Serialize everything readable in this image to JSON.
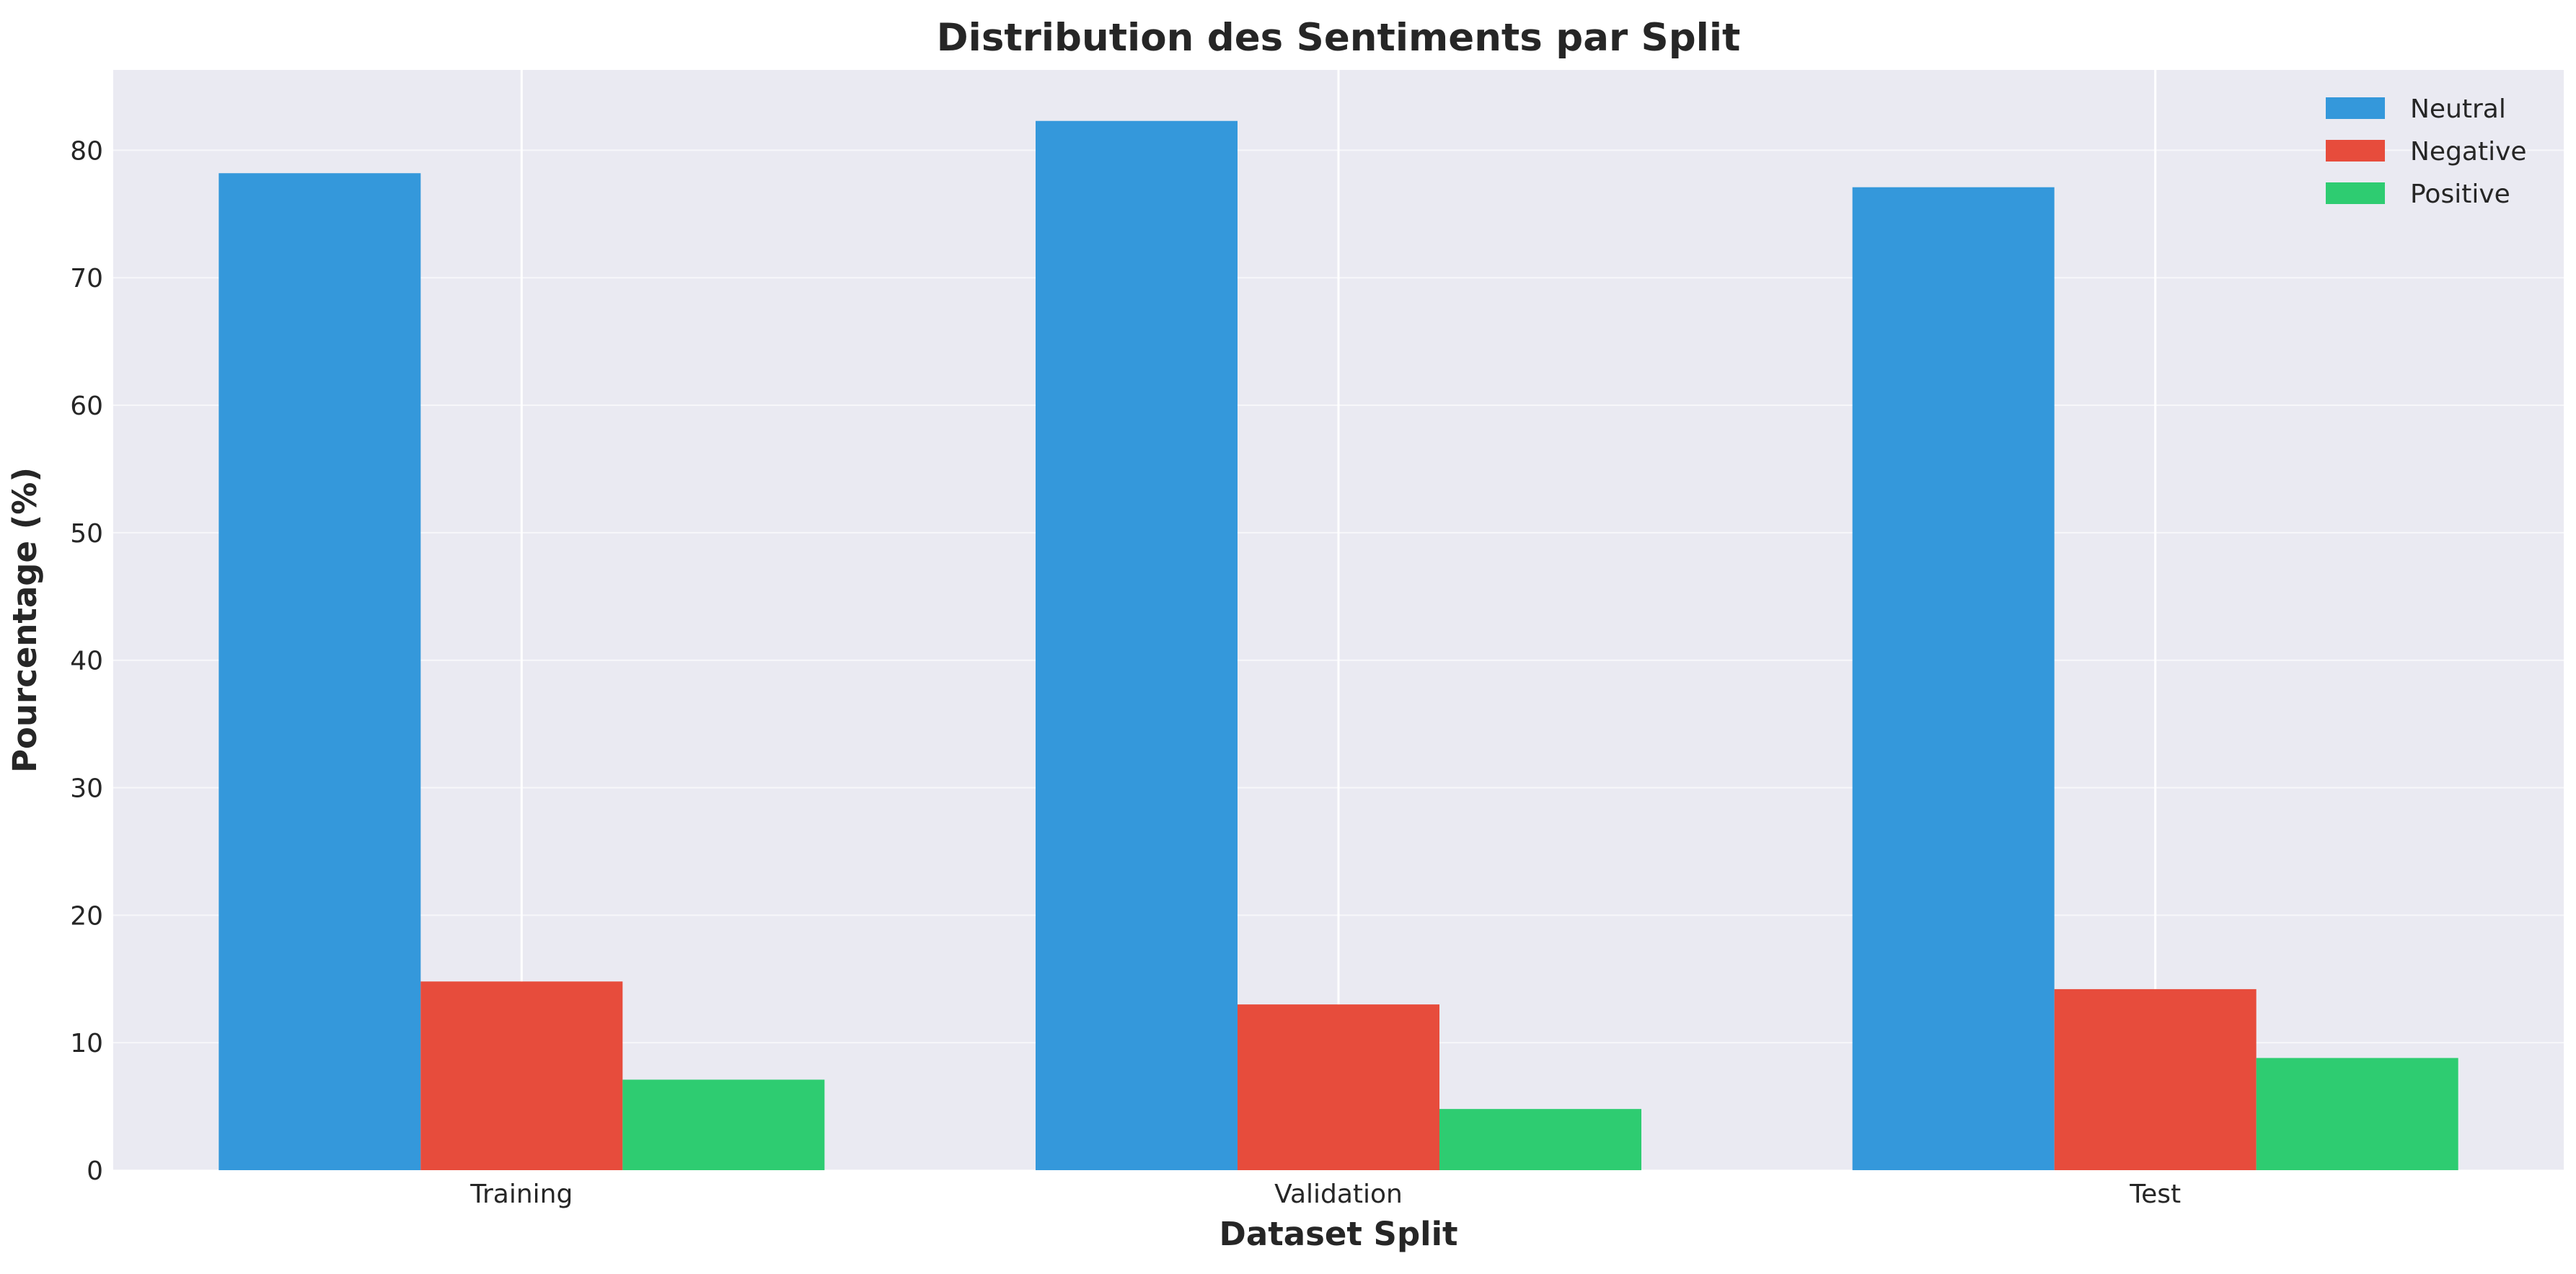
{
  "chart_data": {
    "type": "bar",
    "title": "Distribution des Sentiments par Split",
    "xlabel": "Dataset Split",
    "ylabel": "Pourcentage (%)",
    "categories": [
      "Training",
      "Validation",
      "Test"
    ],
    "series": [
      {
        "name": "Neutral",
        "color": "#3498db",
        "values": [
          78.2,
          82.3,
          77.1
        ]
      },
      {
        "name": "Negative",
        "color": "#e74c3c",
        "values": [
          14.8,
          13.0,
          14.2
        ]
      },
      {
        "name": "Positive",
        "color": "#2ecc71",
        "values": [
          7.1,
          4.8,
          8.8
        ]
      }
    ],
    "ylim": [
      0,
      86.3
    ],
    "yticks": [
      0,
      10,
      20,
      30,
      40,
      50,
      60,
      70,
      80
    ],
    "grid": true,
    "legend_position": "top-right",
    "background": "#eaeaf2"
  }
}
